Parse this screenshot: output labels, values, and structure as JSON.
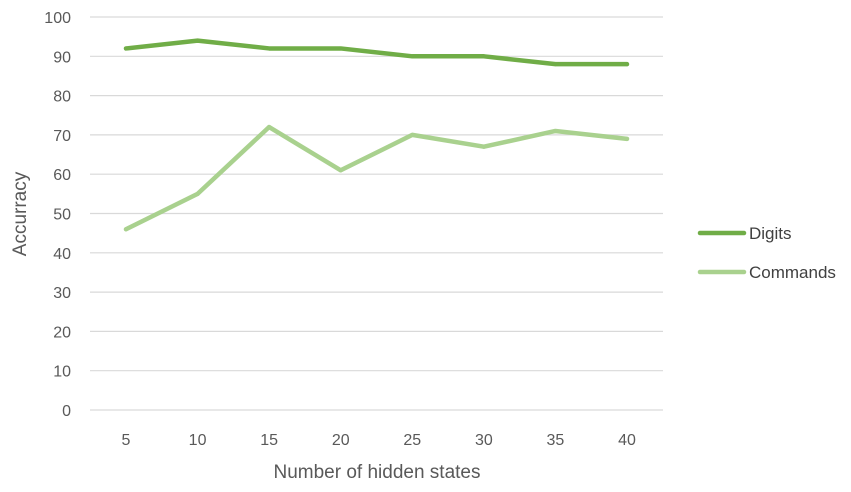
{
  "chart_data": {
    "type": "line",
    "title": "",
    "xlabel": "Number of hidden states",
    "ylabel": "Accurracy",
    "categories": [
      "5",
      "10",
      "15",
      "20",
      "25",
      "30",
      "35",
      "40"
    ],
    "ylim": [
      0,
      100
    ],
    "yticks": [
      "0",
      "10",
      "20",
      "30",
      "40",
      "50",
      "60",
      "70",
      "80",
      "90",
      "100"
    ],
    "grid": true,
    "legend_position": "right",
    "series": [
      {
        "name": "Digits",
        "color": "#70AD47",
        "values": [
          92,
          94,
          92,
          92,
          90,
          90,
          88,
          88
        ]
      },
      {
        "name": "Commands",
        "color": "#A9D18E",
        "values": [
          46,
          55,
          72,
          61,
          70,
          67,
          71,
          69
        ]
      }
    ]
  }
}
